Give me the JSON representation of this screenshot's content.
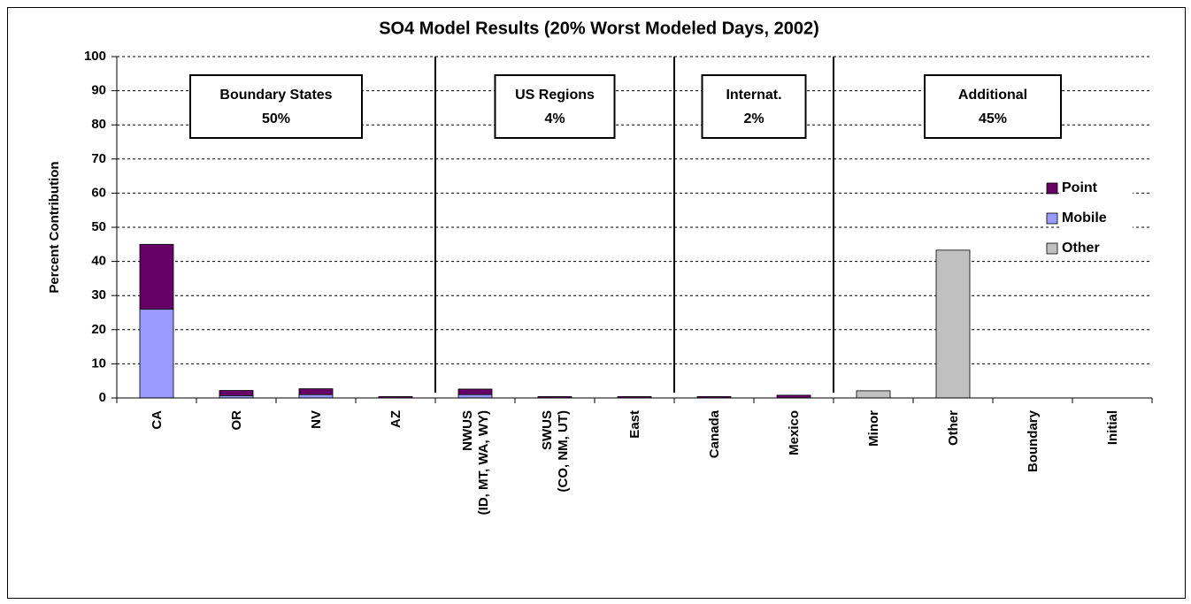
{
  "chart_data": {
    "type": "stacked_bar",
    "title": "SO4 Model Results (20% Worst Modeled Days, 2002)",
    "y_label": "Percent Contribution",
    "categories": [
      "CA",
      "OR",
      "NV",
      "AZ",
      [
        "NWUS",
        "(ID, MT, WA, WY)"
      ],
      [
        "SWUS",
        "(CO, NM, UT)"
      ],
      "East",
      "Canada",
      "Mexico",
      "Minor",
      "Other",
      "Boundary",
      "Initial"
    ],
    "series": [
      {
        "name": "Point",
        "color": "#660066",
        "values": [
          19,
          1.5,
          1.7,
          0.4,
          1.6,
          0.4,
          0.4,
          0.4,
          0.8,
          0,
          0,
          0,
          0
        ]
      },
      {
        "name": "Mobile",
        "color": "#9999ff",
        "values": [
          26,
          0.7,
          1,
          0,
          1,
          0,
          0,
          0,
          0,
          0,
          0,
          0,
          0
        ]
      },
      {
        "name": "Other",
        "color": "#c0c0c0",
        "values": [
          0,
          0,
          0,
          0,
          0,
          0,
          0,
          0,
          0,
          2.1,
          43.3,
          0,
          0
        ]
      }
    ],
    "ylim": [
      0,
      100
    ],
    "yticks": [
      0,
      10,
      20,
      30,
      40,
      50,
      60,
      70,
      80,
      90,
      100
    ],
    "grid": true,
    "legend": "right",
    "annotations": [
      {
        "text": "Boundary States",
        "value": "50%"
      },
      {
        "text": "US Regions",
        "value": "4%"
      },
      {
        "text": "Internat.",
        "value": "2%"
      },
      {
        "text": "Additional",
        "value": "45%"
      }
    ]
  }
}
